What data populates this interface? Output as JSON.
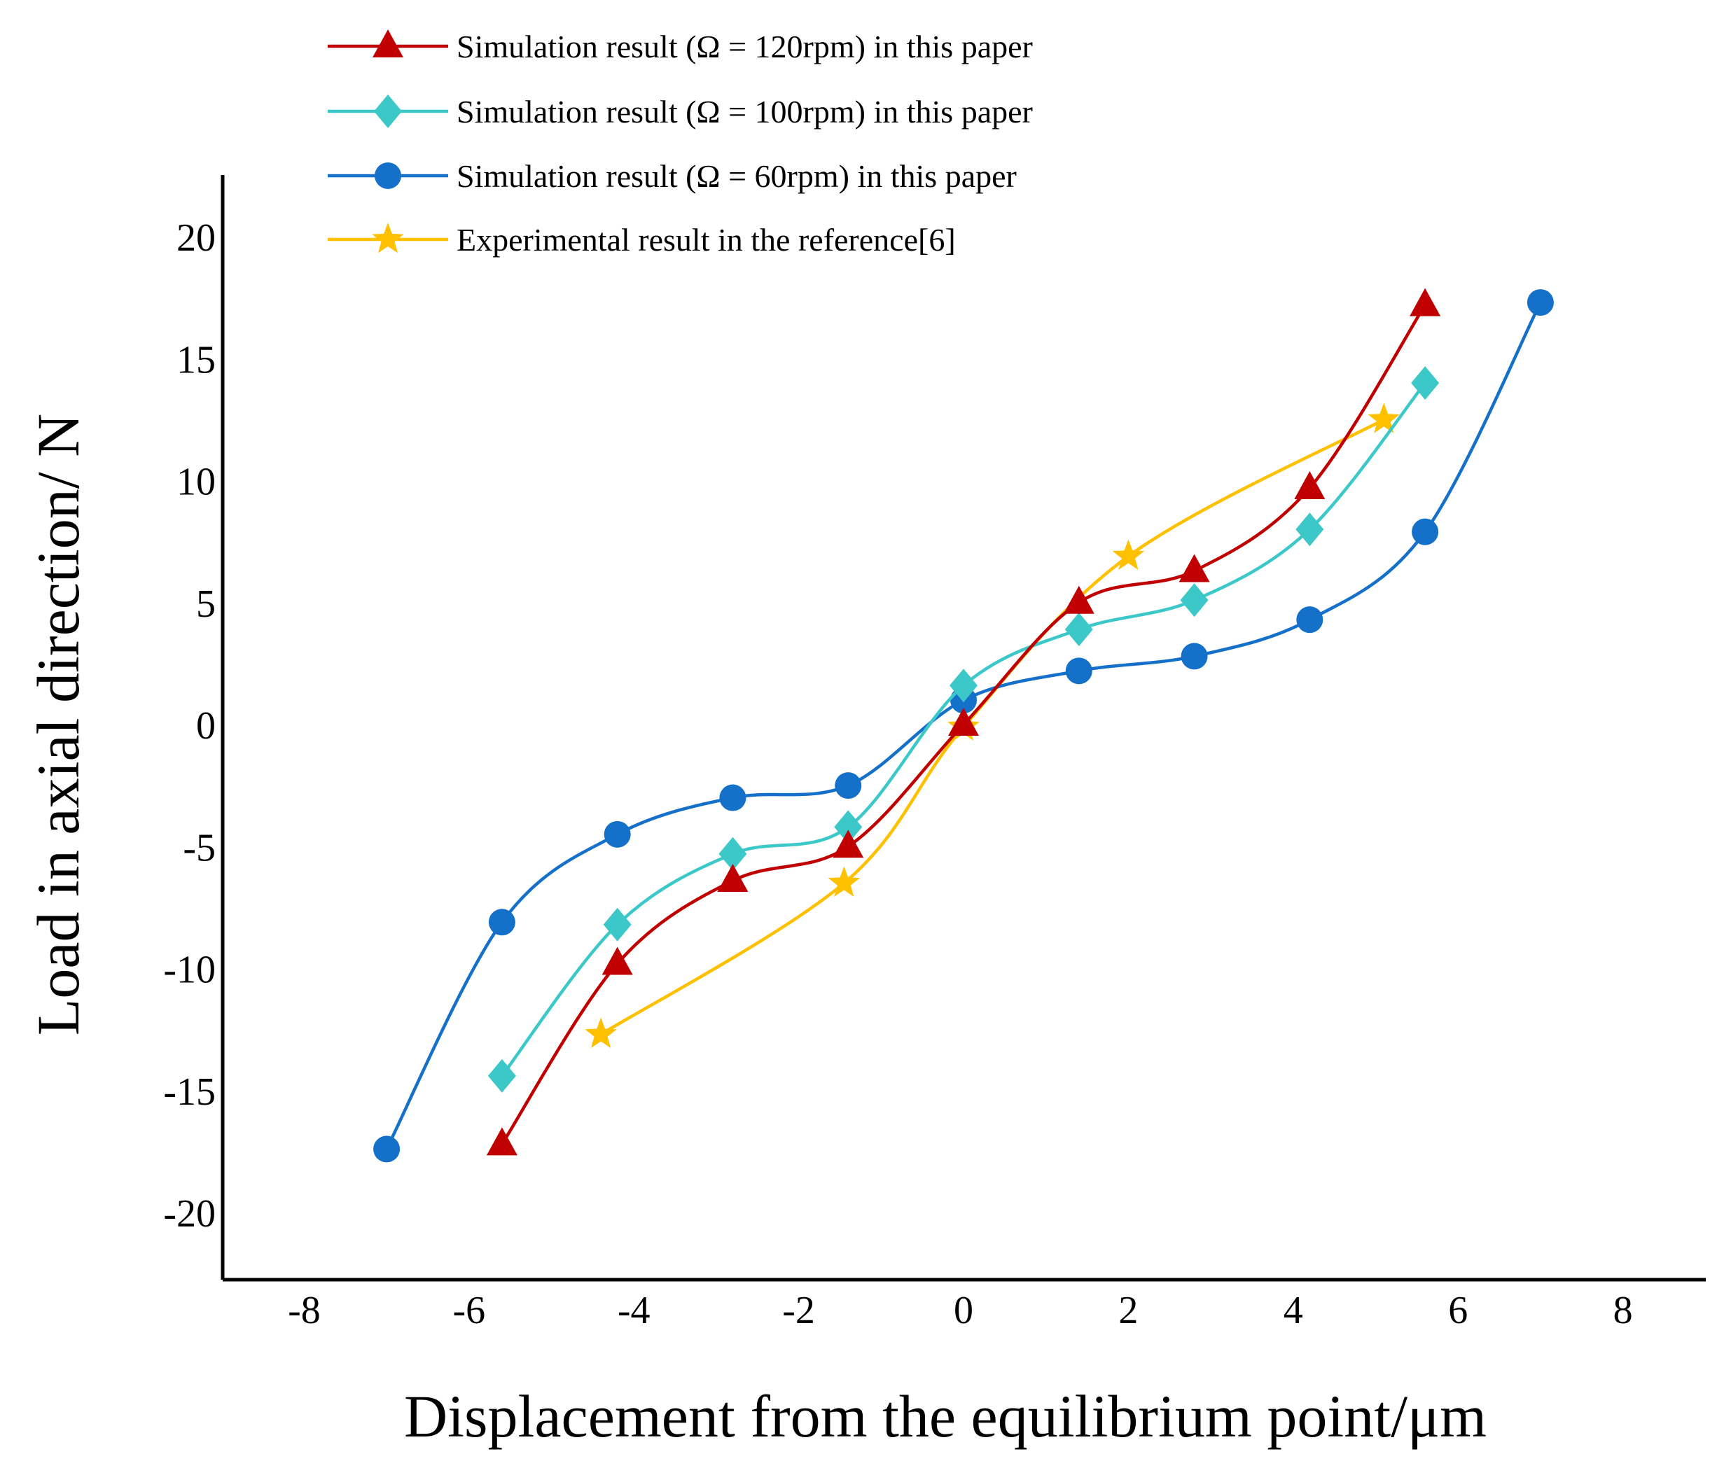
{
  "chart_data": {
    "type": "line",
    "title": "",
    "xlabel": "Displacement from the equilibrium point/μm",
    "ylabel": "Load in axial direction/ N",
    "xlim": [
      -9,
      9
    ],
    "ylim": [
      -22.5,
      22.5
    ],
    "xticks": [
      -8,
      -6,
      -4,
      -2,
      0,
      2,
      4,
      6,
      8
    ],
    "yticks": [
      -20,
      -15,
      -10,
      -5,
      0,
      5,
      10,
      15,
      20
    ],
    "grid": false,
    "legend_position": "top-left",
    "series": [
      {
        "name": "Simulation result (Ω = 120rpm) in this paper",
        "color": "#c00000",
        "marker": "triangle",
        "x": [
          -5.6,
          -4.2,
          -2.8,
          -1.4,
          0,
          1.4,
          2.8,
          4.2,
          5.6
        ],
        "y": [
          -17.2,
          -9.8,
          -6.4,
          -5.0,
          0,
          5.0,
          6.3,
          9.7,
          17.2
        ]
      },
      {
        "name": "Simulation result (Ω = 100rpm) in this paper",
        "color": "#3cc8c8",
        "marker": "diamond",
        "x": [
          -5.6,
          -4.2,
          -2.8,
          -1.4,
          0,
          1.4,
          2.8,
          4.2,
          5.6
        ],
        "y": [
          -14.4,
          -8.2,
          -5.3,
          -4.2,
          1.6,
          3.9,
          5.1,
          8.0,
          14.0
        ]
      },
      {
        "name": "Simulation result (Ω = 60rpm) in this paper",
        "color": "#1470c8",
        "marker": "circle",
        "x": [
          -7.0,
          -5.6,
          -4.2,
          -2.8,
          -1.4,
          0,
          1.4,
          2.8,
          4.2,
          5.6,
          7.0
        ],
        "y": [
          -17.4,
          -8.1,
          -4.5,
          -3.0,
          -2.5,
          1.0,
          2.2,
          2.8,
          4.3,
          7.9,
          17.3
        ]
      },
      {
        "name": "Experimental result in the reference[6]",
        "color": "#ffc000",
        "marker": "star",
        "x": [
          -4.4,
          -1.45,
          0,
          2.0,
          5.1
        ],
        "y": [
          -12.7,
          -6.5,
          -0.1,
          6.9,
          12.5
        ]
      }
    ]
  }
}
